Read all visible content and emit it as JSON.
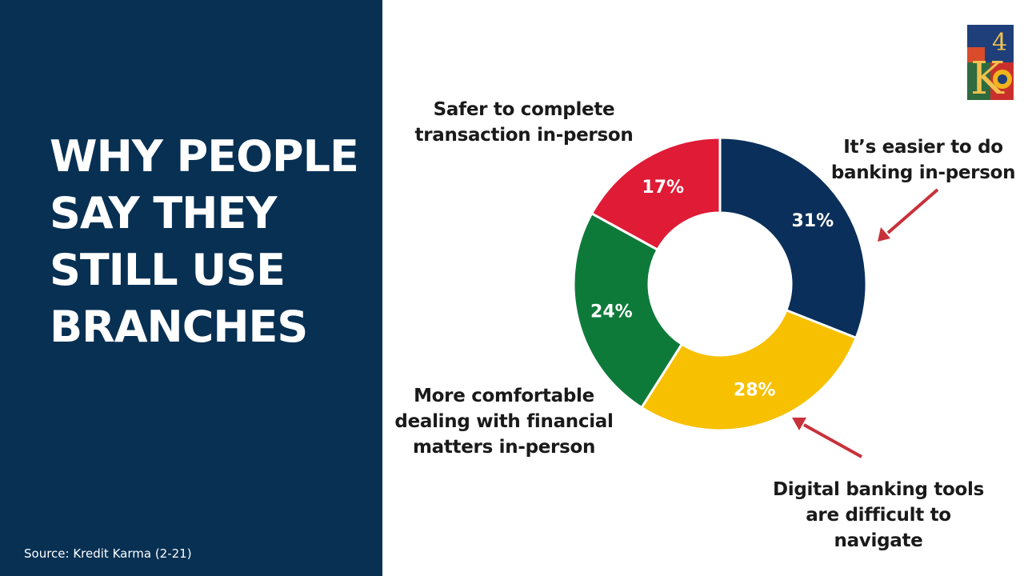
{
  "title": {
    "lines": [
      "WHY PEOPLE",
      "SAY THEY",
      "STILL USE",
      "BRANCHES"
    ]
  },
  "source": "Source: Kredit Karma (2-21)",
  "logo": {
    "text_four": "4",
    "text_k": "K"
  },
  "callouts": {
    "safer": [
      "Safer to complete",
      "transaction in-person"
    ],
    "easier": [
      "It’s easier to do",
      "banking in-person"
    ],
    "comfortable": [
      "More comfortable",
      "dealing with financial",
      "matters in-person"
    ],
    "digital": [
      "Digital banking tools",
      "are difficult to",
      "navigate"
    ]
  },
  "colors": {
    "panel": "#073053",
    "arrow": "#c8313a",
    "slice_label_on_dark": "#ffffff"
  },
  "chart_data": {
    "type": "pie",
    "subtype": "donut",
    "slices": [
      {
        "category": "It’s easier to do banking in-person",
        "value": 31,
        "label": "31%",
        "color": "#0a2f5a"
      },
      {
        "category": "Digital banking tools are difficult to navigate",
        "value": 28,
        "label": "28%",
        "color": "#f7c001"
      },
      {
        "category": "More comfortable dealing with financial matters in-person",
        "value": 24,
        "label": "24%",
        "color": "#0e7a3a"
      },
      {
        "category": "Safer to complete transaction in-person",
        "value": 17,
        "label": "17%",
        "color": "#df1b36"
      }
    ],
    "start": "top",
    "direction": "clockwise"
  }
}
